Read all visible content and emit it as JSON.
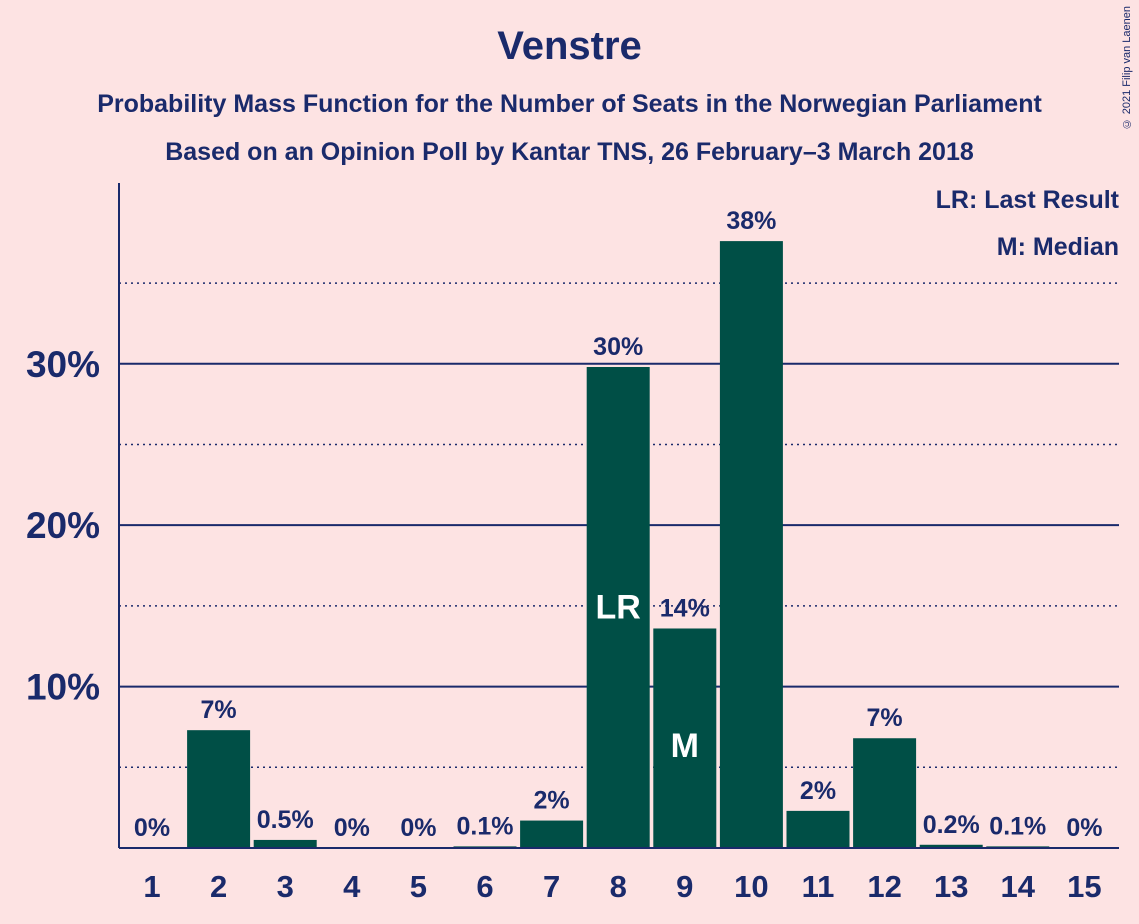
{
  "title": "Venstre",
  "subtitle_line1": "Probability Mass Function for the Number of Seats in the Norwegian Parliament",
  "subtitle_line2": "Based on an Opinion Poll by Kantar TNS, 26 February–3 March 2018",
  "copyright": "© 2021 Filip van Laenen",
  "legend": {
    "last_result": "LR: Last Result",
    "median": "M: Median"
  },
  "colors": {
    "background": "#fde3e3",
    "bar": "#004f46",
    "text": "#1a2a6b",
    "axis": "#1a2a6b"
  },
  "chart_data": {
    "type": "bar",
    "categories": [
      "1",
      "2",
      "3",
      "4",
      "5",
      "6",
      "7",
      "8",
      "9",
      "10",
      "11",
      "12",
      "13",
      "14",
      "15"
    ],
    "values": [
      0,
      7.3,
      0.5,
      0,
      0,
      0.1,
      1.7,
      29.8,
      13.6,
      37.6,
      2.3,
      6.8,
      0.2,
      0.1,
      0
    ],
    "data_labels": [
      "0%",
      "7%",
      "0.5%",
      "0%",
      "0%",
      "0.1%",
      "2%",
      "30%",
      "14%",
      "38%",
      "2%",
      "7%",
      "0.2%",
      "0.1%",
      "0%"
    ],
    "inside_labels": {
      "8": "LR",
      "9": "M"
    },
    "yticks": [
      10,
      20,
      30
    ],
    "ytick_labels": [
      "10%",
      "20%",
      "30%"
    ],
    "minor_gridlines": [
      5,
      15,
      25,
      35
    ],
    "ylim": [
      0,
      41.2
    ],
    "legend_placement": "top-right"
  }
}
